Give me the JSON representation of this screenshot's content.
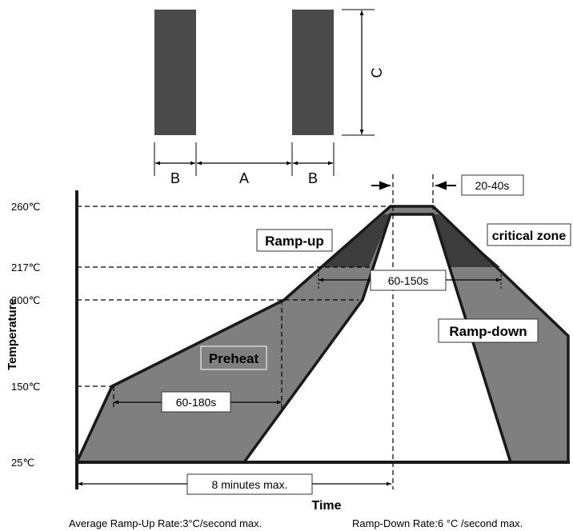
{
  "pad_diagram": {
    "labels": {
      "a": "A",
      "b_left": "B",
      "b_right": "B",
      "c": "C"
    }
  },
  "profile": {
    "axis_labels": {
      "y": "Temperature",
      "x": "Time"
    },
    "temperature_ticks": [
      "260℃",
      "217℃",
      "200℃",
      "150℃",
      "25℃"
    ],
    "zones": {
      "ramp_up": "Ramp-up",
      "ramp_down": "Ramp-down",
      "preheat": "Preheat",
      "critical": "critical zone"
    },
    "durations": {
      "peak": "20-40s",
      "above_217": "60-150s",
      "preheat": "60-180s",
      "total": "8 minutes max."
    },
    "footnotes": {
      "ramp_up_rate": "Average Ramp-Up Rate:3°C/second max.",
      "ramp_down_rate": "Ramp-Down Rate:6 °C /second max."
    },
    "colors": {
      "band": "#7f7f7f",
      "critical": "#3c3c3c",
      "pad": "#4a4a4a"
    }
  }
}
